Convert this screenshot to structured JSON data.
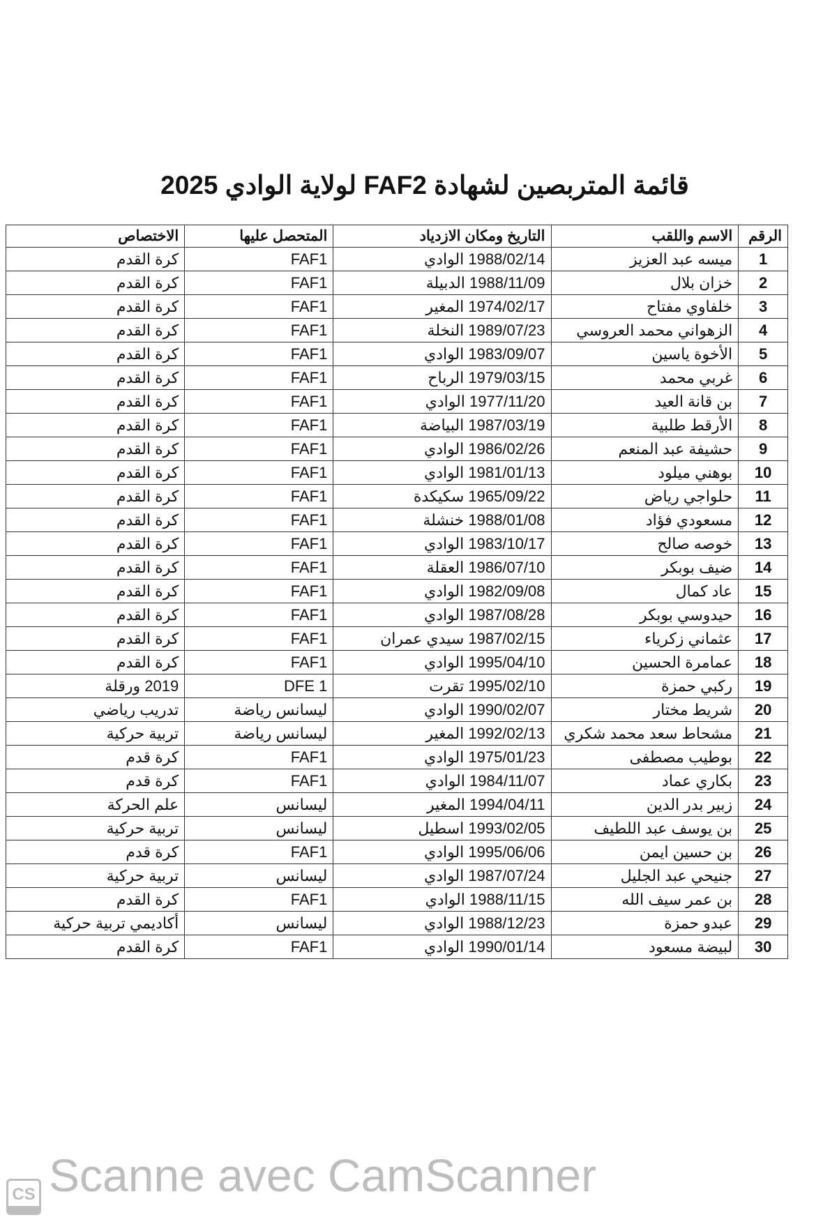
{
  "title": "قائمة المتربصين لشهادة FAF2 لولاية الوادي 2025",
  "table": {
    "headers": {
      "num": "الرقم",
      "name": "الاسم واللقب",
      "date_place": "التاريخ ومكان الازدياد",
      "certificate": "المتحصل عليها",
      "specialty": "الاختصاص"
    },
    "rows": [
      {
        "num": "1",
        "name": "ميسه عبد العزيز",
        "date_place": "1988/02/14 الوادي",
        "certificate": "FAF1",
        "specialty": "كرة القدم"
      },
      {
        "num": "2",
        "name": "خزان بلال",
        "date_place": "1988/11/09 الدبيلة",
        "certificate": "FAF1",
        "specialty": "كرة القدم"
      },
      {
        "num": "3",
        "name": "خلفاوي مفتاح",
        "date_place": "1974/02/17 المغير",
        "certificate": "FAF1",
        "specialty": "كرة القدم"
      },
      {
        "num": "4",
        "name": "الزهواني محمد العروسي",
        "date_place": "1989/07/23  النخلة",
        "certificate": "FAF1",
        "specialty": "كرة القدم"
      },
      {
        "num": "5",
        "name": "الأخوة ياسين",
        "date_place": "1983/09/07 الوادي",
        "certificate": "FAF1",
        "specialty": "كرة القدم"
      },
      {
        "num": "6",
        "name": "غربي محمد",
        "date_place": "1979/03/15 الرباح",
        "certificate": "FAF1",
        "specialty": "كرة القدم"
      },
      {
        "num": "7",
        "name": "بن قانة العيد",
        "date_place": "1977/11/20 الوادي",
        "certificate": "FAF1",
        "specialty": "كرة القدم"
      },
      {
        "num": "8",
        "name": "الأرقط طلبية",
        "date_place": "1987/03/19 البياضة",
        "certificate": "FAF1",
        "specialty": "كرة القدم"
      },
      {
        "num": "9",
        "name": "حشيفة عبد المنعم",
        "date_place": "1986/02/26 الوادي",
        "certificate": "FAF1",
        "specialty": "كرة القدم"
      },
      {
        "num": "10",
        "name": "بوهني ميلود",
        "date_place": "1981/01/13 الوادي",
        "certificate": "FAF1",
        "specialty": "كرة القدم"
      },
      {
        "num": "11",
        "name": "حلواجي رياض",
        "date_place": "1965/09/22 سكيكدة",
        "certificate": "FAF1",
        "specialty": "كرة القدم"
      },
      {
        "num": "12",
        "name": "مسعودي فؤاد",
        "date_place": "1988/01/08 خنشلة",
        "certificate": "FAF1",
        "specialty": "كرة القدم"
      },
      {
        "num": "13",
        "name": "خوصه صالح",
        "date_place": "1983/10/17 الوادي",
        "certificate": "FAF1",
        "specialty": "كرة القدم"
      },
      {
        "num": "14",
        "name": "ضيف بوبكر",
        "date_place": "1986/07/10 العقلة",
        "certificate": "FAF1",
        "specialty": "كرة القدم"
      },
      {
        "num": "15",
        "name": "عاد كمال",
        "date_place": "1982/09/08 الوادي",
        "certificate": "FAF1",
        "specialty": "كرة القدم"
      },
      {
        "num": "16",
        "name": "حيدوسي بوبكر",
        "date_place": "1987/08/28 الوادي",
        "certificate": "FAF1",
        "specialty": "كرة القدم"
      },
      {
        "num": "17",
        "name": "عثماني زكرياء",
        "date_place": "1987/02/15 سيدي عمران",
        "certificate": "FAF1",
        "specialty": "كرة القدم"
      },
      {
        "num": "18",
        "name": "عمامرة الحسين",
        "date_place": "1995/04/10 الوادي",
        "certificate": "FAF1",
        "specialty": "كرة القدم"
      },
      {
        "num": "19",
        "name": "ركبي حمزة",
        "date_place": "1995/02/10 تقرت",
        "certificate": "DFE 1",
        "specialty": "2019 ورقلة"
      },
      {
        "num": "20",
        "name": "شريط مختار",
        "date_place": "1990/02/07 الوادي",
        "certificate": "ليسانس رياضة",
        "specialty": "تدريب رياضي"
      },
      {
        "num": "21",
        "name": "مشحاط سعد محمد شكري",
        "date_place": "1992/02/13 المغير",
        "certificate": "ليسانس رياضة",
        "specialty": "تربية حركية"
      },
      {
        "num": "22",
        "name": "بوطيب مصطفى",
        "date_place": "1975/01/23 الوادي",
        "certificate": "FAF1",
        "specialty": "كرة   قدم"
      },
      {
        "num": "23",
        "name": "بكاري  عماد",
        "date_place": "1984/11/07 الوادي",
        "certificate": "FAF1",
        "specialty": "كرة قدم"
      },
      {
        "num": "24",
        "name": "زبير بدر الدين",
        "date_place": "1994/04/11 المغير",
        "certificate": "ليسانس",
        "specialty": "علم الحركة"
      },
      {
        "num": "25",
        "name": "بن يوسف عبد اللطيف",
        "date_place": "1993/02/05 اسطيل",
        "certificate": "ليسانس",
        "specialty": "تربية حركية"
      },
      {
        "num": "26",
        "name": "بن حسين ايمن",
        "date_place": "1995/06/06 الوادي",
        "certificate": "FAF1",
        "specialty": "كرة قدم"
      },
      {
        "num": "27",
        "name": "جنيحي عبد الجليل",
        "date_place": "1987/07/24 الوادي",
        "certificate": "ليسانس",
        "specialty": "تربية حركية"
      },
      {
        "num": "28",
        "name": "بن عمر سيف الله",
        "date_place": "1988/11/15 الوادي",
        "certificate": "FAF1",
        "specialty": "كرة القدم"
      },
      {
        "num": "29",
        "name": "عبدو حمزة",
        "date_place": "1988/12/23 الوادي",
        "certificate": "ليسانس",
        "specialty": "أكاديمي تربية حركية"
      },
      {
        "num": "30",
        "name": "لبيضة  مسعود",
        "date_place": "1990/01/14 الوادي",
        "certificate": "FAF1",
        "specialty": "كرة القدم"
      }
    ]
  },
  "watermark": {
    "text": "Scanne avec CamScanner",
    "logo": "CS"
  }
}
